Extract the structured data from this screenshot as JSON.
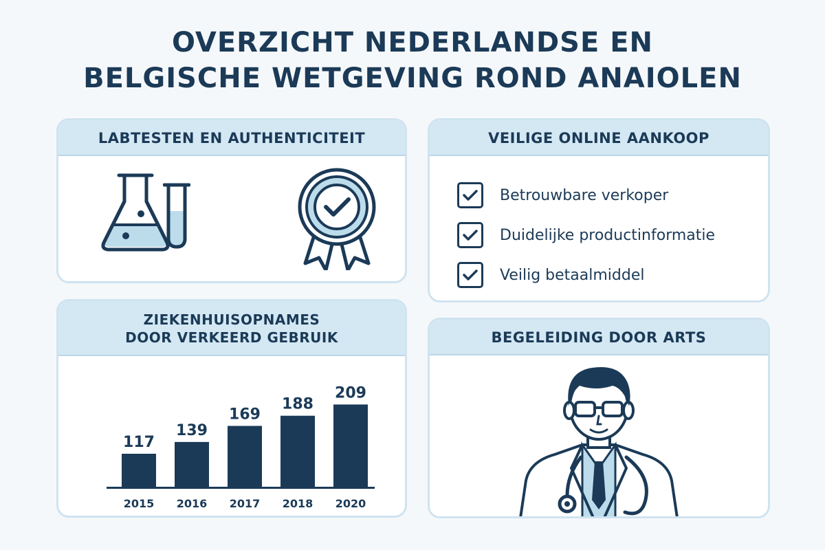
{
  "title": {
    "line1": "OVERZICHT NEDERLANDSE EN",
    "line2": "BELGISCHE WETGEVING ROND ANAIOLEN"
  },
  "lab_card": {
    "header": "LABTESTEN EN AUTHENTICITEIT",
    "icons": [
      "flask-icon",
      "test-tube-icon",
      "award-badge-icon"
    ]
  },
  "online_card": {
    "header": "VEILIGE ONLINE AANKOOP",
    "items": [
      {
        "label": "Betrouwbare verkoper",
        "checked": true
      },
      {
        "label": "Duidelijke productinformatie",
        "checked": true
      },
      {
        "label": "Veilig betaalmiddel",
        "checked": true
      }
    ]
  },
  "hospital_card": {
    "header_line1": "ZIEKENHUISOPNAMES",
    "header_line2": "DOOR VERKEERD GEBRUIK"
  },
  "doctor_card": {
    "header": "BEGELEIDING DOOR ARTS",
    "icons": [
      "doctor-icon",
      "stethoscope-icon"
    ]
  },
  "colors": {
    "navy": "#1b3a57",
    "header_bg": "#d4e8f4",
    "card_border": "#cfe3f0",
    "accent_light": "#bcdcec"
  },
  "chart_data": {
    "type": "bar",
    "categories": [
      "2015",
      "2016",
      "2017",
      "2018",
      "2020"
    ],
    "values": [
      117,
      139,
      169,
      188,
      209
    ],
    "ylim": [
      0,
      230
    ],
    "grid": false,
    "data_labels": true
  }
}
